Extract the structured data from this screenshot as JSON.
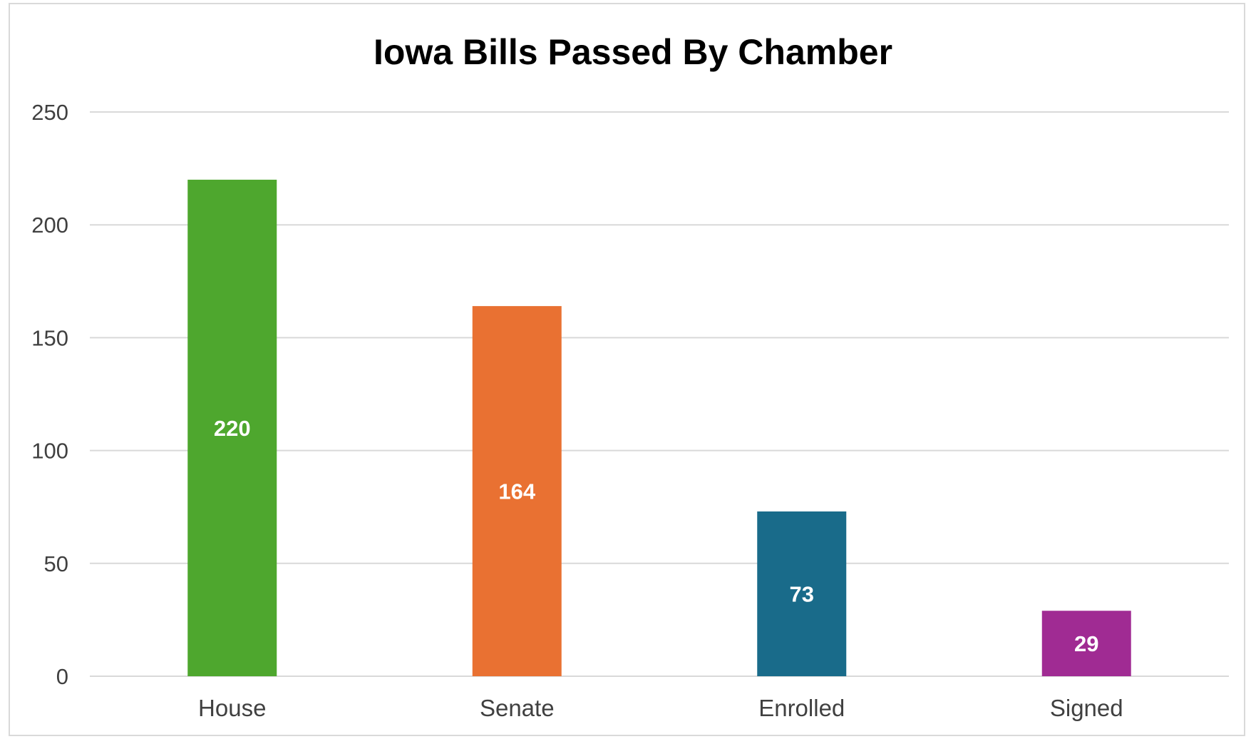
{
  "chart_data": {
    "type": "bar",
    "title": "Iowa Bills Passed By Chamber",
    "xlabel": "",
    "ylabel": "",
    "categories": [
      "House",
      "Senate",
      "Enrolled",
      "Signed"
    ],
    "values": [
      220,
      164,
      73,
      29
    ],
    "data_labels": [
      "220",
      "164",
      "73",
      "29"
    ],
    "colors": [
      "#4ea72e",
      "#e97132",
      "#196b8a",
      "#a02b93"
    ],
    "ylim": [
      0,
      250
    ],
    "yticks": [
      0,
      50,
      100,
      150,
      200,
      250
    ],
    "ytick_labels": [
      "0",
      "50",
      "100",
      "150",
      "200",
      "250"
    ],
    "grid": true,
    "legend": "none"
  }
}
